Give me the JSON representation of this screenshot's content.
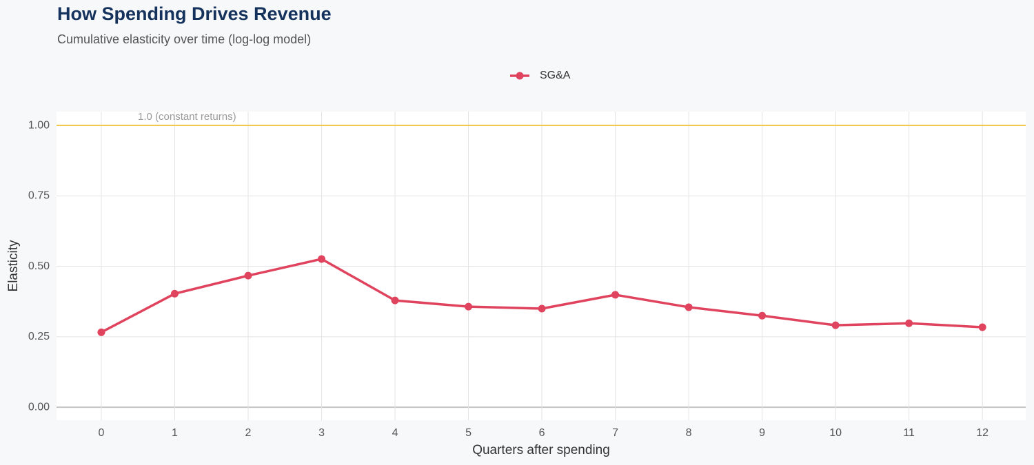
{
  "chart_data": {
    "type": "line",
    "title": "How Spending Drives Revenue",
    "subtitle": "Cumulative elasticity over time (log-log model)",
    "x_label": "Quarters after spending",
    "y_label": "Elasticity",
    "x": [
      0,
      1,
      2,
      3,
      4,
      5,
      6,
      7,
      8,
      9,
      10,
      11,
      12
    ],
    "series": [
      {
        "name": "SG&A",
        "color": "#e0435e",
        "values": [
          0.266,
          0.403,
          0.467,
          0.526,
          0.379,
          0.357,
          0.35,
          0.399,
          0.355,
          0.325,
          0.291,
          0.298,
          0.284
        ]
      }
    ],
    "xlim": [
      -0.61,
      12.59
    ],
    "xticks": [
      0,
      1,
      2,
      3,
      4,
      5,
      6,
      7,
      8,
      9,
      10,
      11,
      12
    ],
    "ylim": [
      -0.046,
      1.049
    ],
    "yticks": [
      {
        "value": 0,
        "label": "0.00"
      },
      {
        "value": 0.25,
        "label": "0.25"
      },
      {
        "value": 0.5,
        "label": "0.50"
      },
      {
        "value": 0.75,
        "label": "0.75"
      },
      {
        "value": 1,
        "label": "1.00"
      }
    ],
    "reference_line": {
      "value": 1,
      "label": "1.0 (constant returns)",
      "color": "#f2c94c"
    },
    "grid": true,
    "legend": "top"
  }
}
